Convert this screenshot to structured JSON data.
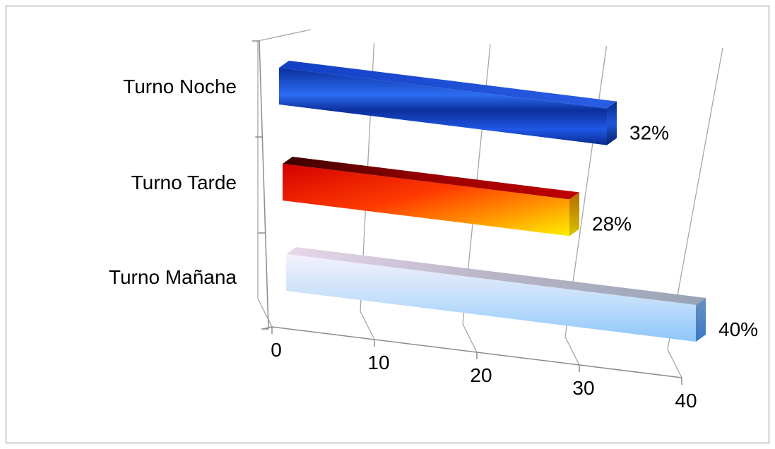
{
  "chart_data": {
    "type": "bar",
    "orientation": "horizontal",
    "style": "3d",
    "categories": [
      "Turno Noche",
      "Turno Tarde",
      "Turno Mañana"
    ],
    "values": [
      32,
      28,
      40
    ],
    "data_labels": [
      "32%",
      "28%",
      "40%"
    ],
    "x_ticks": [
      "0",
      "10",
      "20",
      "30",
      "40"
    ],
    "xlim": [
      0,
      40
    ],
    "grid": true,
    "legend": "none",
    "colors": {
      "Turno Noche": "#0a3fd6",
      "Turno Tarde": "#f01010",
      "Turno Mañana": "#cfe6fb"
    },
    "title": "",
    "xlabel": "",
    "ylabel": ""
  }
}
